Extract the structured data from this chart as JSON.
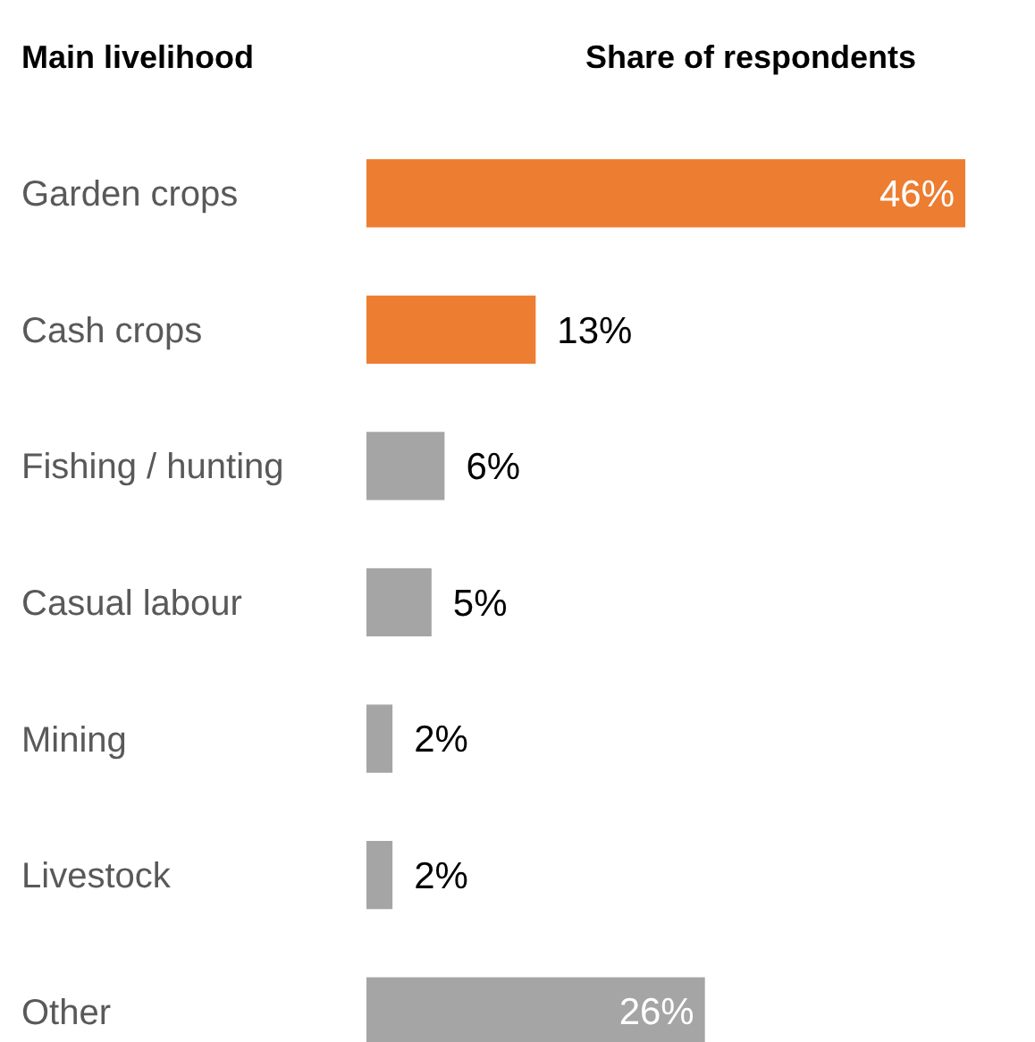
{
  "chart_data": {
    "type": "bar",
    "orientation": "horizontal",
    "ylabel": "Main livelihood",
    "xlabel": "Share of respondents",
    "categories": [
      "Garden crops",
      "Cash crops",
      "Fishing / hunting",
      "Casual labour",
      "Mining",
      "Livestock",
      "Other"
    ],
    "values": [
      46,
      13,
      6,
      5,
      2,
      2,
      26
    ],
    "colors": [
      "#ed7d31",
      "#ed7d31",
      "#a5a5a5",
      "#a5a5a5",
      "#a5a5a5",
      "#a5a5a5",
      "#a5a5a5"
    ],
    "value_labels": [
      "46%",
      "13%",
      "6%",
      "5%",
      "2%",
      "2%",
      "26%"
    ],
    "tick_labels": "y"
  }
}
